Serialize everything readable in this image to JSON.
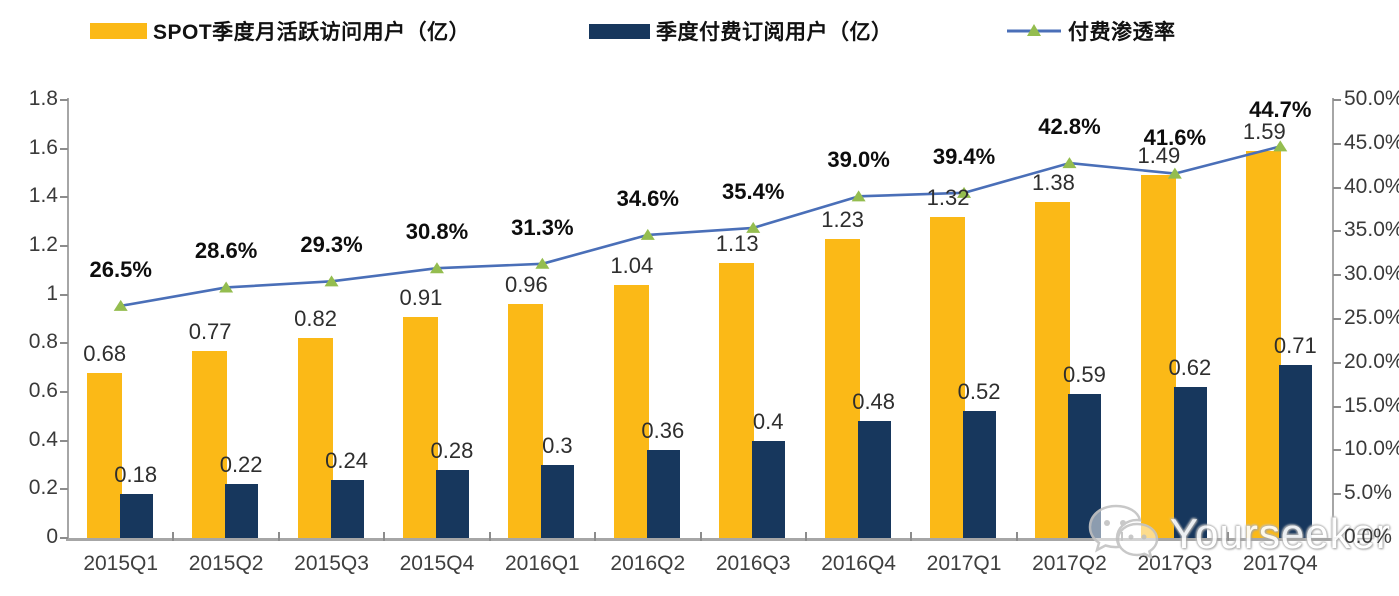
{
  "legend": {
    "items": [
      {
        "label": "SPOT季度月活跃访问用户（亿）",
        "swatch": "yellow-bar-swatch",
        "color": "#FBB917"
      },
      {
        "label": "季度付费订阅用户（亿）",
        "swatch": "navy-bar-swatch",
        "color": "#17375D"
      },
      {
        "label": "付费渗透率",
        "swatch": "line-marker-swatch",
        "line_color": "#4A6FB8",
        "marker_color": "#94BD4F"
      }
    ]
  },
  "watermark": {
    "text": "Yourseeker",
    "icon": "wechat-icon"
  },
  "chart_data": {
    "type": "bar+line",
    "title": "",
    "categories": [
      "2015Q1",
      "2015Q2",
      "2015Q3",
      "2015Q4",
      "2016Q1",
      "2016Q2",
      "2016Q3",
      "2016Q4",
      "2017Q1",
      "2017Q2",
      "2017Q3",
      "2017Q4"
    ],
    "series": [
      {
        "name": "SPOT季度月活跃访问用户（亿）",
        "type": "bar",
        "axis": "left",
        "color": "#FBB917",
        "values": [
          0.68,
          0.77,
          0.82,
          0.91,
          0.96,
          1.04,
          1.13,
          1.23,
          1.32,
          1.38,
          1.49,
          1.59
        ],
        "labels": [
          "0.68",
          "0.77",
          "0.82",
          "0.91",
          "0.96",
          "1.04",
          "1.13",
          "1.23",
          "1.32",
          "1.38",
          "1.49",
          "1.59"
        ]
      },
      {
        "name": "季度付费订阅用户（亿）",
        "type": "bar",
        "axis": "left",
        "color": "#17375D",
        "values": [
          0.18,
          0.22,
          0.24,
          0.28,
          0.3,
          0.36,
          0.4,
          0.48,
          0.52,
          0.59,
          0.62,
          0.71
        ],
        "labels": [
          "0.18",
          "0.22",
          "0.24",
          "0.28",
          "0.3",
          "0.36",
          "0.4",
          "0.48",
          "0.52",
          "0.59",
          "0.62",
          "0.71"
        ]
      },
      {
        "name": "付费渗透率",
        "type": "line",
        "axis": "right",
        "color": "#4A6FB8",
        "marker": "triangle",
        "marker_color": "#94BD4F",
        "values": [
          26.5,
          28.6,
          29.3,
          30.8,
          31.3,
          34.6,
          35.4,
          39.0,
          39.4,
          42.8,
          41.6,
          44.7
        ],
        "labels": [
          "26.5%",
          "28.6%",
          "29.3%",
          "30.8%",
          "31.3%",
          "34.6%",
          "35.4%",
          "39.0%",
          "39.4%",
          "42.8%",
          "41.6%",
          "44.7%"
        ]
      }
    ],
    "left_axis": {
      "min": 0,
      "max": 1.8,
      "step": 0.2,
      "tick_labels": [
        "0",
        "0.2",
        "0.4",
        "0.6",
        "0.8",
        "1",
        "1.2",
        "1.4",
        "1.6",
        "1.8"
      ]
    },
    "right_axis": {
      "min": 0,
      "max": 50,
      "step": 5,
      "tick_labels": [
        "0.0%",
        "5.0%",
        "10.0%",
        "15.0%",
        "20.0%",
        "25.0%",
        "30.0%",
        "35.0%",
        "40.0%",
        "45.0%",
        "50.0%"
      ]
    },
    "grid": false,
    "legend_position": "top"
  }
}
